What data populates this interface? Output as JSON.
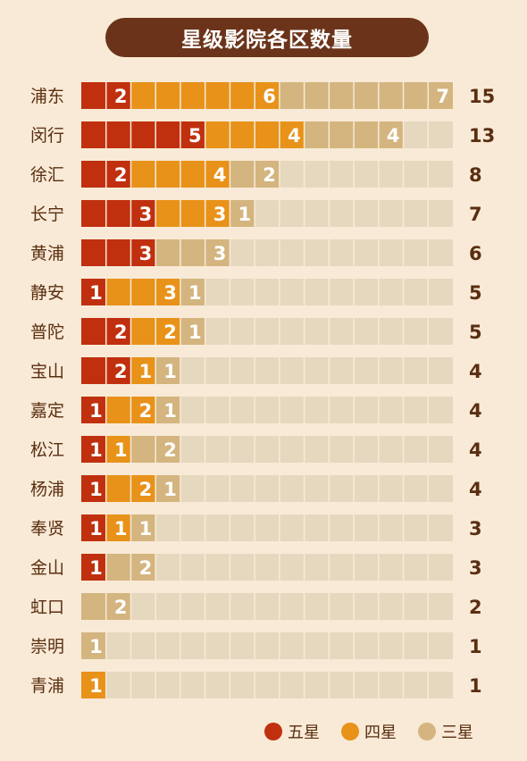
{
  "chart_data": {
    "type": "bar",
    "stacked": true,
    "orientation": "horizontal",
    "title": "星级影院各区数量",
    "categories": [
      "浦东",
      "闵行",
      "徐汇",
      "长宁",
      "黄浦",
      "静安",
      "普陀",
      "宝山",
      "嘉定",
      "松江",
      "杨浦",
      "奉贤",
      "金山",
      "虹口",
      "崇明",
      "青浦"
    ],
    "series": [
      {
        "name": "五星",
        "color": "#c0300f",
        "values": [
          2,
          5,
          2,
          3,
          3,
          1,
          2,
          2,
          1,
          1,
          1,
          1,
          1,
          0,
          0,
          0
        ]
      },
      {
        "name": "四星",
        "color": "#e8921a",
        "values": [
          6,
          4,
          4,
          3,
          0,
          3,
          2,
          1,
          2,
          1,
          2,
          1,
          0,
          0,
          0,
          1
        ]
      },
      {
        "name": "三星",
        "color": "#d4b57f",
        "values": [
          7,
          4,
          2,
          1,
          3,
          1,
          1,
          1,
          1,
          2,
          1,
          1,
          2,
          2,
          1,
          0
        ]
      }
    ],
    "totals": [
      15,
      13,
      8,
      7,
      6,
      5,
      5,
      4,
      4,
      4,
      4,
      3,
      3,
      2,
      1,
      1
    ],
    "xlim": [
      0,
      15
    ],
    "grid": true,
    "legend_position": "bottom-right"
  },
  "colors": {
    "background": "#f8ead6",
    "track": "#e6d8bf",
    "title_bg": "#6b341a",
    "text_dark": "#5a2e12"
  }
}
